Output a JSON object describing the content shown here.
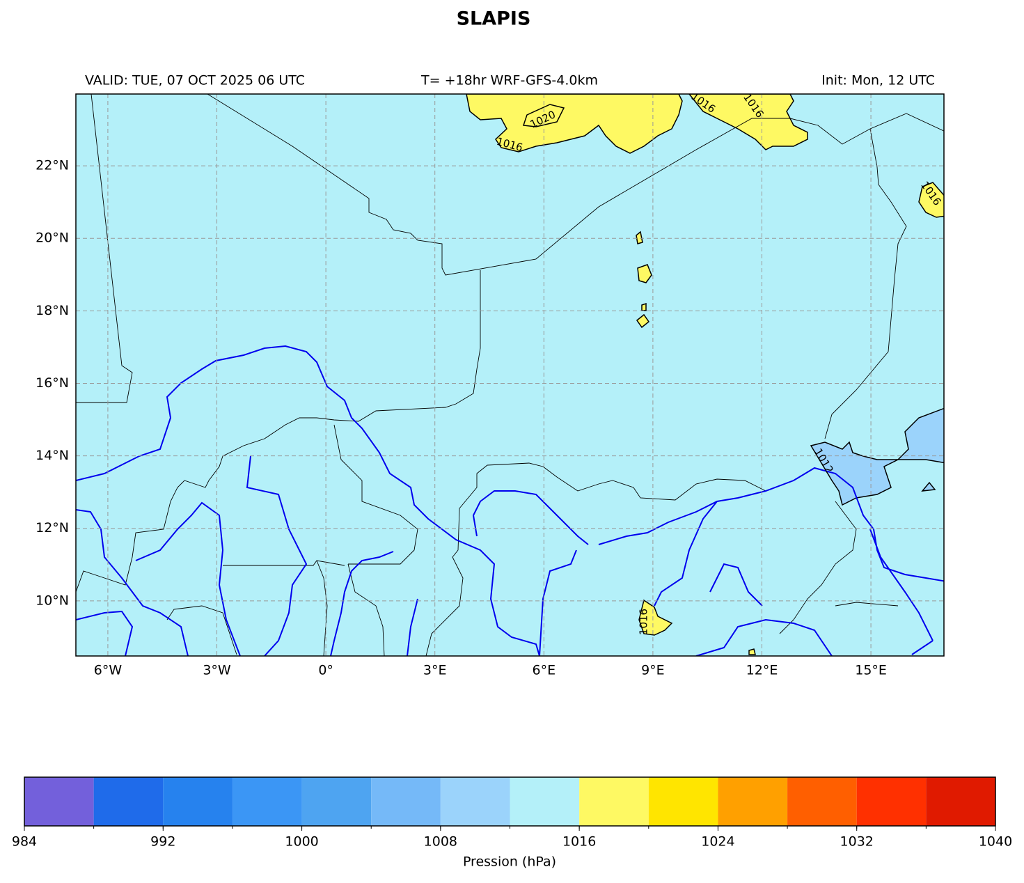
{
  "title": "SLAPIS",
  "header": {
    "valid": "VALID: TUE, 07 OCT 2025 06 UTC",
    "run": "T= +18hr WRF-GFS-4.0km",
    "init": "Init: Mon, 12 UTC"
  },
  "map": {
    "lonlim": [
      -6.88,
      17.01
    ],
    "latlim": [
      8.48,
      23.98
    ],
    "lon_ticks": [
      {
        "value": -6,
        "label": "6°W"
      },
      {
        "value": -3,
        "label": "3°W"
      },
      {
        "value": 0,
        "label": "0°"
      },
      {
        "value": 3,
        "label": "3°E"
      },
      {
        "value": 6,
        "label": "6°E"
      },
      {
        "value": 9,
        "label": "9°E"
      },
      {
        "value": 12,
        "label": "12°E"
      },
      {
        "value": 15,
        "label": "15°E"
      }
    ],
    "lat_ticks": [
      {
        "value": 10,
        "label": "10°N"
      },
      {
        "value": 12,
        "label": "12°N"
      },
      {
        "value": 14,
        "label": "14°N"
      },
      {
        "value": 16,
        "label": "16°N"
      },
      {
        "value": 18,
        "label": "18°N"
      },
      {
        "value": 20,
        "label": "20°N"
      },
      {
        "value": 22,
        "label": "22°N"
      }
    ],
    "contour_labels": [
      "1020",
      "1016",
      "1016",
      "1016",
      "1016",
      "1016",
      "1012"
    ]
  },
  "colorbar": {
    "label": "Pression (hPa)",
    "levels": [
      984,
      988,
      992,
      996,
      1000,
      1004,
      1008,
      1012,
      1016,
      1020,
      1024,
      1028,
      1032,
      1036,
      1040
    ],
    "colors": [
      "#7360db",
      "#1f6bea",
      "#2682ee",
      "#3b96f5",
      "#4ea4f1",
      "#75b9f8",
      "#9bd3fb",
      "#b4f0f9",
      "#fef963",
      "#ffe500",
      "#ffa000",
      "#ff5f00",
      "#ff3000",
      "#e01a00"
    ],
    "ticks": [
      984,
      992,
      1000,
      1008,
      1016,
      1024,
      1032,
      1040
    ]
  }
}
